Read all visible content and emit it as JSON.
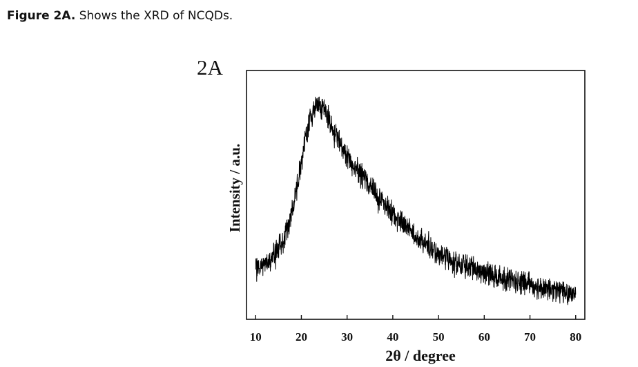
{
  "caption": {
    "label": "Figure 2A.",
    "text": " Shows the XRD of NCQDs."
  },
  "chart_data": {
    "type": "line",
    "panel_label": "2A",
    "title": "",
    "xlabel": "2θ / degree",
    "ylabel": "Intensity / a.u.",
    "xlim": [
      8,
      82
    ],
    "ylim": [
      0,
      1
    ],
    "xticks": [
      10,
      20,
      30,
      40,
      50,
      60,
      70,
      80
    ],
    "yticks_shown": false,
    "grid": false,
    "legend": "none",
    "line_color": "#000000",
    "series": [
      {
        "x": [
          10,
          12,
          14,
          16,
          17,
          18,
          19,
          20,
          21,
          22,
          23,
          24,
          25,
          26,
          27,
          28,
          29,
          30,
          32,
          34,
          36,
          38,
          40,
          42,
          44,
          46,
          48,
          50,
          52,
          55,
          58,
          60,
          62,
          65,
          68,
          70,
          72,
          75,
          78,
          80
        ],
        "values": [
          0.2,
          0.22,
          0.26,
          0.31,
          0.36,
          0.44,
          0.53,
          0.64,
          0.73,
          0.81,
          0.85,
          0.86,
          0.84,
          0.8,
          0.76,
          0.72,
          0.69,
          0.65,
          0.6,
          0.56,
          0.51,
          0.47,
          0.43,
          0.39,
          0.35,
          0.32,
          0.29,
          0.26,
          0.24,
          0.22,
          0.2,
          0.19,
          0.18,
          0.16,
          0.15,
          0.14,
          0.13,
          0.12,
          0.11,
          0.1
        ]
      }
    ]
  }
}
